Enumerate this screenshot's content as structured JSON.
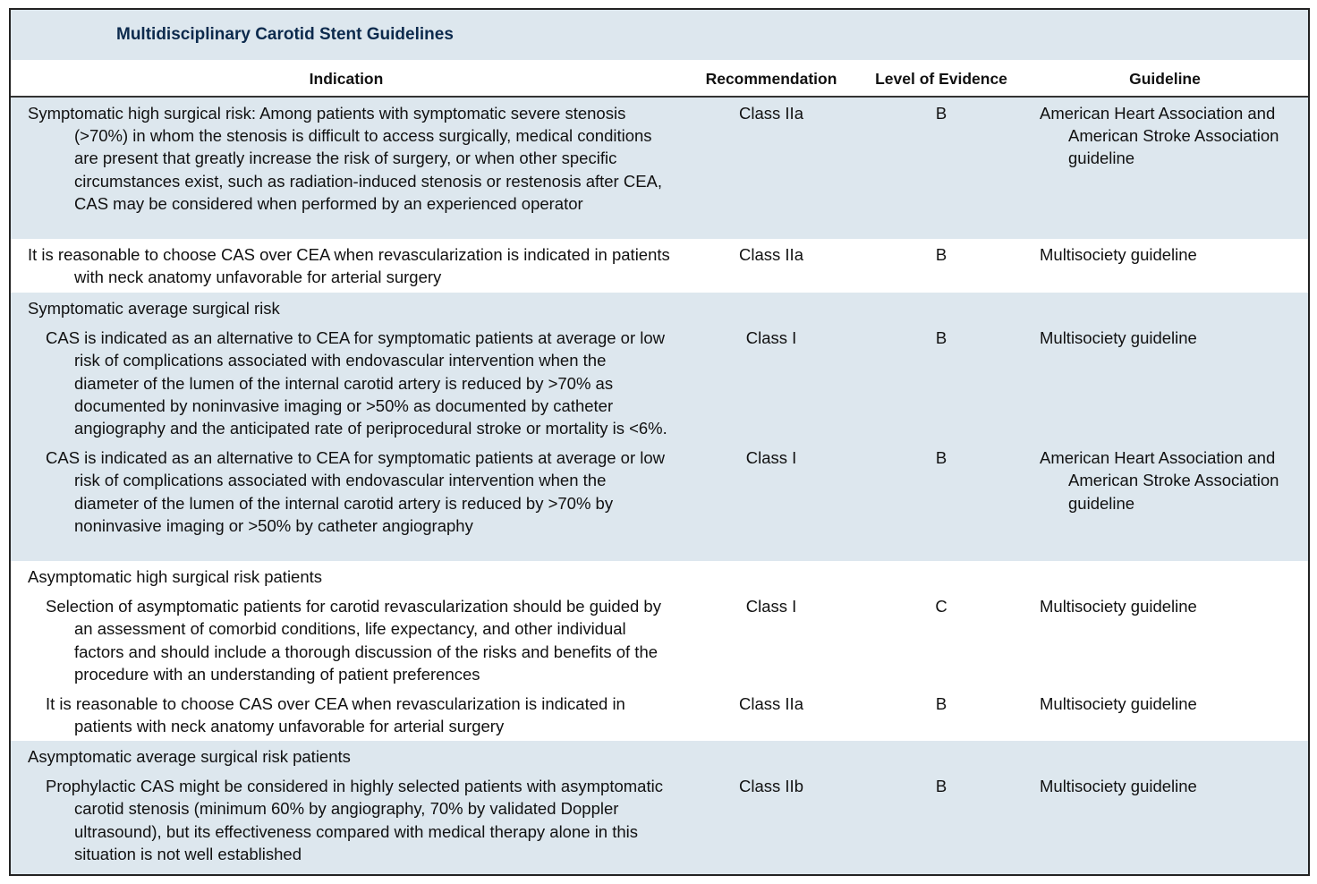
{
  "title": "Multidisciplinary Carotid Stent Guidelines",
  "columns": [
    "Indication",
    "Recommendation",
    "Level of Evidence",
    "Guideline"
  ],
  "rows": [
    {
      "indication": "Symptomatic high surgical risk: Among patients with symptomatic severe stenosis (>70%) in whom the stenosis is difficult to access surgically, medical conditions are present that greatly increase the risk of surgery, or when other specific circumstances exist, such as radiation-induced stenosis or restenosis after CEA, CAS may be considered when performed by an experienced operator",
      "recommendation": "Class IIa",
      "level": "B",
      "guideline": "American Heart Association and American Stroke Association guideline"
    },
    {
      "indication": "It is reasonable to choose CAS over CEA when revascularization is indicated in patients with neck anatomy unfavorable for arterial surgery",
      "recommendation": "Class IIa",
      "level": "B",
      "guideline": "Multisociety guideline"
    }
  ],
  "groups": [
    {
      "heading": "Symptomatic average surgical risk",
      "items": [
        {
          "indication": "CAS is indicated as an alternative to CEA for symptomatic patients at average or low risk of complications associated with endovascular intervention when the diameter of the lumen of the internal carotid artery is reduced by >70% as documented by noninvasive imaging or >50% as documented by catheter angiography and the anticipated rate of periprocedural stroke or mortality is <6%.",
          "recommendation": "Class I",
          "level": "B",
          "guideline": "Multisociety guideline"
        },
        {
          "indication": "CAS is indicated as an alternative to CEA for symptomatic patients at average or low risk of complications associated with endovascular intervention when the diameter of the lumen of the internal carotid artery is reduced by >70% by noninvasive imaging or >50% by catheter angiography",
          "recommendation": "Class I",
          "level": "B",
          "guideline": "American Heart Association and American Stroke Association guideline"
        }
      ]
    },
    {
      "heading": "Asymptomatic high surgical risk patients",
      "items": [
        {
          "indication": "Selection of asymptomatic patients for carotid revascularization should be guided by an assessment of comorbid conditions, life expectancy, and other individual factors and should include a thorough discussion of the risks and benefits of the procedure with an understanding of patient preferences",
          "recommendation": "Class I",
          "level": "C",
          "guideline": "Multisociety guideline"
        },
        {
          "indication": "It is reasonable to choose CAS over CEA when revascularization is indicated in patients with neck anatomy unfavorable for arterial surgery",
          "recommendation": "Class IIa",
          "level": "B",
          "guideline": "Multisociety guideline"
        }
      ]
    },
    {
      "heading": "Asymptomatic average surgical risk patients",
      "items": [
        {
          "indication": "Prophylactic CAS might be considered in highly selected patients with asymptomatic carotid stenosis (minimum 60% by angiography, 70% by validated Doppler ultrasound), but its effectiveness compared with medical therapy alone in this situation is not well established",
          "recommendation": "Class IIb",
          "level": "B",
          "guideline": "Multisociety guideline"
        }
      ]
    }
  ],
  "colors": {
    "band": "#dde7ee",
    "title": "#0c2a4d"
  }
}
